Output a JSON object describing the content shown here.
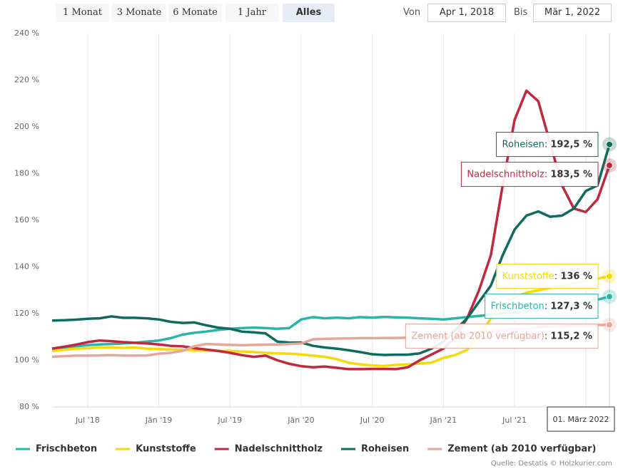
{
  "controls": {
    "ranges": [
      "1 Monat",
      "3 Monate",
      "6 Monate",
      "1 Jahr",
      "Alles"
    ],
    "selected": "Alles",
    "from_label": "Von",
    "from": "Apr 1, 2018",
    "to_label": "Bis",
    "to": "Mär 1, 2022"
  },
  "chart_data": {
    "type": "line",
    "x": [
      "2018-04",
      "2018-05",
      "2018-06",
      "2018-07",
      "2018-08",
      "2018-09",
      "2018-10",
      "2018-11",
      "2018-12",
      "2019-01",
      "2019-02",
      "2019-03",
      "2019-04",
      "2019-05",
      "2019-06",
      "2019-07",
      "2019-08",
      "2019-09",
      "2019-10",
      "2019-11",
      "2019-12",
      "2020-01",
      "2020-02",
      "2020-03",
      "2020-04",
      "2020-05",
      "2020-06",
      "2020-07",
      "2020-08",
      "2020-09",
      "2020-10",
      "2020-11",
      "2020-12",
      "2021-01",
      "2021-02",
      "2021-03",
      "2021-04",
      "2021-05",
      "2021-06",
      "2021-07",
      "2021-08",
      "2021-09",
      "2021-10",
      "2021-11",
      "2021-12",
      "2022-01",
      "2022-02",
      "2022-03"
    ],
    "xlim": [
      "2018-04",
      "2022-03"
    ],
    "xticks": [
      {
        "value": "2018-07",
        "label": "Jul '18"
      },
      {
        "value": "2019-01",
        "label": "Jän '19"
      },
      {
        "value": "2019-07",
        "label": "Jul '19"
      },
      {
        "value": "2020-01",
        "label": "Jän '20"
      },
      {
        "value": "2020-07",
        "label": "Jul '20"
      },
      {
        "value": "2021-01",
        "label": "Jän '21"
      },
      {
        "value": "2021-07",
        "label": "Jul '21"
      },
      {
        "value": "2022-01",
        "label": "Jän '22"
      }
    ],
    "ylim": [
      80,
      240
    ],
    "yticks": [
      {
        "value": 80,
        "label": "80 %"
      },
      {
        "value": 100,
        "label": "100 %"
      },
      {
        "value": 120,
        "label": "120 %"
      },
      {
        "value": 140,
        "label": "140 %"
      },
      {
        "value": 160,
        "label": "160 %"
      },
      {
        "value": 180,
        "label": "180 %"
      },
      {
        "value": 200,
        "label": "200 %"
      },
      {
        "value": 220,
        "label": "220 %"
      },
      {
        "value": 240,
        "label": "240 %"
      }
    ],
    "grid": "x",
    "series": [
      {
        "name": "Frischbeton",
        "color": "#2bb5a8",
        "last_label": "127,3 %",
        "values": [
          105,
          105.5,
          106,
          106.5,
          106.8,
          107,
          107.2,
          107.5,
          108,
          108.5,
          109.5,
          111,
          111.8,
          112.3,
          113,
          113.5,
          113.8,
          114,
          113.8,
          113.5,
          113.8,
          117.5,
          118.5,
          118,
          118.3,
          118,
          118.5,
          118.3,
          118.6,
          118.4,
          118.3,
          118,
          117.8,
          117.5,
          118,
          118.5,
          119,
          119.5,
          120,
          120.5,
          121,
          121.5,
          122,
          122.5,
          123.5,
          125,
          126,
          127.3
        ]
      },
      {
        "name": "Kunststoffe",
        "color": "#f5d90a",
        "last_label": "136 %",
        "values": [
          104,
          104.5,
          105,
          105.2,
          105.5,
          105.5,
          105.3,
          105.5,
          105,
          104.8,
          104.6,
          104.5,
          104.3,
          104.2,
          104,
          104,
          103.8,
          103.5,
          103.2,
          103,
          102.8,
          102.5,
          102,
          101.5,
          100.5,
          99,
          98.3,
          97.8,
          97.6,
          98,
          98.3,
          98.6,
          99,
          101,
          102.3,
          104.5,
          110,
          118,
          123,
          127,
          129,
          130,
          131,
          132,
          133,
          134,
          135,
          136
        ]
      },
      {
        "name": "Nadelschnittholz",
        "color": "#c1283f",
        "last_label": "183,5 %",
        "values": [
          105,
          105.8,
          106.7,
          107.8,
          108.5,
          108.2,
          107.8,
          107.5,
          107.2,
          106.8,
          106.2,
          106,
          105.2,
          104.6,
          104,
          103.2,
          102.2,
          101.5,
          102,
          100,
          98.5,
          97.5,
          97,
          97.3,
          96.8,
          96.2,
          96.2,
          96.3,
          96.3,
          96.2,
          97,
          100,
          102.5,
          105,
          110,
          118,
          130,
          145,
          175,
          203,
          215.5,
          211,
          193,
          175,
          165,
          163.5,
          169,
          183.5
        ]
      },
      {
        "name": "Roheisen",
        "color": "#0f6b5e",
        "last_label": "192,5 %",
        "values": [
          117,
          117.2,
          117.4,
          117.8,
          118,
          118.8,
          118.2,
          118.2,
          118,
          117.5,
          116.5,
          116,
          116.2,
          115,
          114,
          113.5,
          112.3,
          112,
          111.5,
          108,
          107.6,
          107.6,
          106.2,
          105.5,
          105,
          104.3,
          103.5,
          102.6,
          102.3,
          102.4,
          102.4,
          103,
          105,
          108,
          113,
          118,
          125,
          132,
          145,
          156,
          162,
          163.8,
          161.5,
          162,
          165,
          172.5,
          175,
          192.5
        ]
      },
      {
        "name": "Zement (ab 2010 verfügbar)",
        "color": "#e6a699",
        "last_label": "115,2 %",
        "values": [
          101.5,
          101.8,
          102,
          102,
          102.1,
          102.2,
          102,
          102,
          102.1,
          102.8,
          103.2,
          104,
          106,
          107,
          106.8,
          106.6,
          106.5,
          106.6,
          106.7,
          106.8,
          107,
          107.2,
          109,
          109.2,
          109.3,
          109.4,
          109.5,
          109.5,
          109.6,
          109.6,
          109.7,
          109.8,
          110,
          110.5,
          111,
          111.5,
          112,
          112.5,
          113,
          113.3,
          113.6,
          114,
          114.3,
          114.6,
          114.9,
          115,
          115.1,
          115.2
        ]
      }
    ],
    "tooltip_date": "01. März 2022",
    "source": "Quelle: Destatis © Holzkurier.com"
  }
}
